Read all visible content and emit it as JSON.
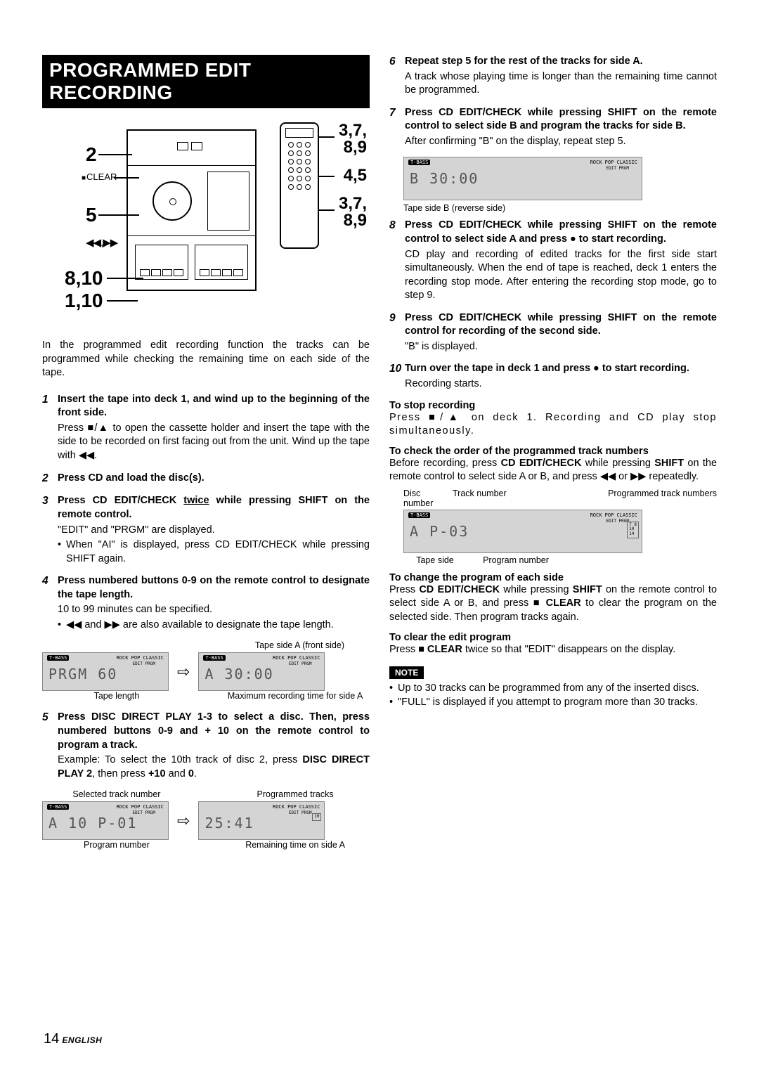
{
  "section_title": "PROGRAMMED EDIT RECORDING",
  "diagram": {
    "callout_2": "2",
    "callout_5": "5",
    "callout_810": "8,10",
    "callout_110": "1,10",
    "callout_37_top": "3,7,",
    "callout_89_top": "8,9",
    "callout_45": "4,5",
    "callout_37_bot": "3,7,",
    "callout_89_bot": "8,9",
    "clear_label": "CLEAR",
    "symbols": "◀◀,▶▶"
  },
  "intro": "In the programmed edit recording function the tracks can be programmed while checking the remaining time on each side of the tape.",
  "steps_left": [
    {
      "n": "1",
      "head": "Insert the tape into deck 1, and wind up to the beginning of the front side.",
      "details": [
        "Press ■/▲ to open the cassette holder and insert the tape with the side to be recorded on first facing out from the unit. Wind up the tape with ◀◀."
      ]
    },
    {
      "n": "2",
      "head": "Press CD and load the disc(s)."
    },
    {
      "n": "3",
      "head_html": "Press CD EDIT/CHECK <u>twice</u> while pressing SHIFT on the remote control.",
      "details": [
        "\"EDIT\" and \"PRGM\" are displayed."
      ],
      "bullets": [
        "When \"AI\" is displayed, press CD EDIT/CHECK while pressing SHIFT again."
      ]
    },
    {
      "n": "4",
      "head": "Press numbered buttons 0-9 on the remote control to designate the tape length.",
      "details": [
        "10 to 99 minutes can be specified."
      ],
      "bullets": [
        "◀◀ and ▶▶ are also available to designate the tape length."
      ]
    }
  ],
  "lcd1": {
    "toplabel": "Tape side A (front side)",
    "left_seg": "PRGM   60",
    "right_seg": "A      30:00",
    "cap_left": "Tape length",
    "cap_right": "Maximum recording time for side A",
    "tbass": "T-BASS",
    "genres": "ROCK  POP  CLASSIC",
    "editprgm": "EDIT   PRGM"
  },
  "step5": {
    "n": "5",
    "head": "Press DISC DIRECT PLAY 1-3 to select a disc. Then, press numbered buttons 0-9 and + 10 on the remote control to program a track.",
    "detail_html": "Example: To select the 10th track of disc 2, press <b>DISC DIRECT PLAY 2</b>, then press <b>+10</b> and <b>0</b>."
  },
  "lcd2": {
    "cap_tl": "Selected track number",
    "cap_tr": "Programmed tracks",
    "left_seg": "A 10   P-01",
    "right_seg": "       25:41",
    "pnum": "10",
    "cap_bl": "Program number",
    "cap_br": "Remaining time on side A"
  },
  "steps_right": [
    {
      "n": "6",
      "head": "Repeat step 5 for the rest of the tracks for side A.",
      "details": [
        "A track whose playing time is longer than the remaining time cannot be programmed."
      ]
    },
    {
      "n": "7",
      "head": "Press CD EDIT/CHECK while pressing SHIFT on the remote control to select side B and program the tracks for side B.",
      "details": [
        "After confirming \"B\" on the display, repeat step 5."
      ]
    }
  ],
  "lcd3": {
    "seg": "B      30:00",
    "cap": "Tape side B (reverse side)"
  },
  "steps_right2": [
    {
      "n": "8",
      "head_html": "Press CD EDIT/CHECK while pressing SHIFT on the remote control to select side A and press ● to start recording.",
      "details": [
        "CD play and recording of edited tracks for the first side start simultaneously. When the end of tape is reached, deck 1 enters the recording stop mode. After entering the recording stop mode, go to step 9."
      ]
    },
    {
      "n": "9",
      "head": "Press CD EDIT/CHECK while pressing SHIFT on the remote control for recording of the second side.",
      "details": [
        "\"B\" is displayed."
      ]
    },
    {
      "n": "10",
      "head_html": "Turn over the tape in deck 1 and press ● to start recording.",
      "details": [
        "Recording starts."
      ]
    }
  ],
  "sub1": {
    "head": "To stop recording",
    "body": "Press ■/▲ on deck 1. Recording and CD play stop simultaneously."
  },
  "sub2": {
    "head": "To check the order of the programmed track numbers",
    "body_html": "Before recording, press <b>CD EDIT/CHECK</b> while pressing <b>SHIFT</b> on the remote control to select side A or B, and press ◀◀ or ▶▶ repeatedly."
  },
  "lcd4": {
    "top_l": "Disc number",
    "top_m": "Track number",
    "top_r": "Programmed track numbers",
    "seg": "A      P-03",
    "pnums": "7 8\n10\n14",
    "cap_l": "Tape side",
    "cap_r": "Program number"
  },
  "sub3": {
    "head": "To change the program of each side",
    "body_html": "Press <b>CD EDIT/CHECK</b> while pressing <b>SHIFT</b> on the remote control to select side A or B, and press ■ <b>CLEAR</b> to clear the program on the selected side. Then program tracks again."
  },
  "sub4": {
    "head": "To clear the edit program",
    "body_html": "Press ■ <b>CLEAR</b> twice so that \"EDIT\" disappears on the display."
  },
  "note_tag": "NOTE",
  "notes": [
    "Up to 30 tracks can be programmed from any of the inserted discs.",
    "\"FULL\" is displayed if you attempt to program more than 30 tracks."
  ],
  "page_number": "14",
  "page_lang": "ENGLISH"
}
